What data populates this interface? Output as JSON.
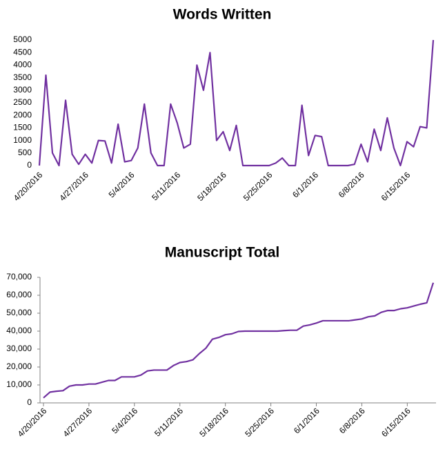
{
  "chart_data": [
    {
      "type": "line",
      "title": "Words Written",
      "categories": [
        "4/20/2016",
        null,
        null,
        null,
        null,
        null,
        null,
        "4/27/2016",
        null,
        null,
        null,
        null,
        null,
        null,
        "5/4/2016",
        null,
        null,
        null,
        null,
        null,
        null,
        "5/11/2016",
        null,
        null,
        null,
        null,
        null,
        null,
        "5/18/2016",
        null,
        null,
        null,
        null,
        null,
        null,
        "5/25/2016",
        null,
        null,
        null,
        null,
        null,
        null,
        "6/1/2016",
        null,
        null,
        null,
        null,
        null,
        null,
        "6/8/2016",
        null,
        null,
        null,
        null,
        null,
        null,
        "6/15/2016",
        null,
        null,
        null,
        null
      ],
      "series": [
        {
          "name": "Words Written",
          "color": "#7030a0",
          "values": [
            0,
            3600,
            500,
            0,
            2600,
            450,
            50,
            450,
            100,
            1000,
            980,
            100,
            1650,
            150,
            200,
            700,
            2450,
            500,
            0,
            0,
            2450,
            1700,
            700,
            850,
            4000,
            3000,
            4500,
            1000,
            1350,
            600,
            1600,
            0,
            0,
            0,
            0,
            0,
            100,
            300,
            0,
            0,
            2400,
            400,
            1200,
            1150,
            0,
            0,
            0,
            0,
            50,
            850,
            150,
            1450,
            600,
            1900,
            700,
            0,
            950,
            750,
            1550,
            1500,
            5000
          ]
        }
      ],
      "ylim": [
        0,
        5000
      ],
      "yticks": [
        0,
        500,
        1000,
        1500,
        2000,
        2500,
        3000,
        3500,
        4000,
        4500,
        5000
      ]
    },
    {
      "type": "line",
      "title": "Manuscript Total",
      "categories": [
        "4/20/2016",
        null,
        null,
        null,
        null,
        null,
        null,
        "4/27/2016",
        null,
        null,
        null,
        null,
        null,
        null,
        "5/4/2016",
        null,
        null,
        null,
        null,
        null,
        null,
        "5/11/2016",
        null,
        null,
        null,
        null,
        null,
        null,
        "5/18/2016",
        null,
        null,
        null,
        null,
        null,
        null,
        "5/25/2016",
        null,
        null,
        null,
        null,
        null,
        null,
        "6/1/2016",
        null,
        null,
        null,
        null,
        null,
        null,
        "6/8/2016",
        null,
        null,
        null,
        null,
        null,
        null,
        "6/15/2016",
        null,
        null,
        null,
        null
      ],
      "series": [
        {
          "name": "Manuscript Total",
          "color": "#7030a0",
          "values": [
            2800,
            6000,
            6500,
            6800,
            9300,
            10000,
            10000,
            10500,
            10500,
            11500,
            12500,
            12500,
            14500,
            14500,
            14500,
            15500,
            17800,
            18300,
            18300,
            18300,
            20800,
            22500,
            23000,
            24000,
            27500,
            30500,
            35500,
            36500,
            38000,
            38500,
            39800,
            40000,
            40000,
            40000,
            40000,
            40000,
            40000,
            40300,
            40500,
            40500,
            42800,
            43500,
            44500,
            45800,
            45800,
            45800,
            45800,
            45800,
            46300,
            46800,
            48000,
            48500,
            50500,
            51500,
            51500,
            52500,
            53000,
            54000,
            55000,
            55800,
            67000
          ]
        }
      ],
      "ylim": [
        0,
        70000
      ],
      "yticks": [
        0,
        {
          "value": 10000,
          "label": "10,000"
        },
        {
          "value": 20000,
          "label": "20,000"
        },
        {
          "value": 30000,
          "label": "30,000"
        },
        {
          "value": 40000,
          "label": "40,000"
        },
        {
          "value": 50000,
          "label": "50,000"
        },
        {
          "value": 60000,
          "label": "60,000"
        },
        {
          "value": 70000,
          "label": "70,000"
        }
      ]
    }
  ]
}
